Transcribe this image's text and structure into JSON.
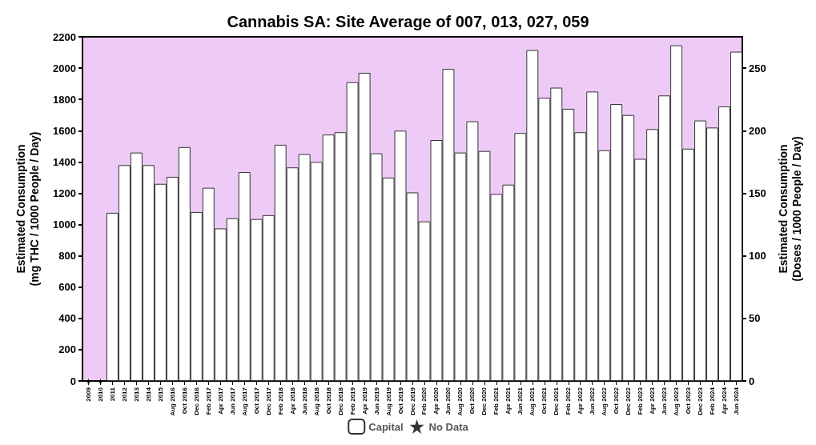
{
  "chart_data": {
    "type": "bar",
    "title": "Cannabis SA: Site Average of 007, 013, 027, 059",
    "ylabel": "Estimated Consumption\n(mg THC / 1000 People / Day)",
    "y2label": "Estimated Consumption\n(Doses / 1000 People / Day)",
    "categories": [
      "2009",
      "2010",
      "2011",
      "2012",
      "2013",
      "2014",
      "2015",
      "Aug 2016",
      "Oct 2016",
      "Dec 2016",
      "Feb 2017",
      "Apr 2017",
      "Jun 2017",
      "Aug 2017",
      "Oct 2017",
      "Dec 2017",
      "Feb 2018",
      "Apr 2018",
      "Jun 2018",
      "Aug 2018",
      "Oct 2018",
      "Dec 2018",
      "Feb 2019",
      "Apr 2019",
      "Jun 2019",
      "Aug 2019",
      "Oct 2019",
      "Dec 2019",
      "Feb 2020",
      "Apr 2020",
      "Jun 2020",
      "Aug 2020",
      "Oct 2020",
      "Dec 2020",
      "Feb 2021",
      "Apr 2021",
      "Jun 2021",
      "Aug 2021",
      "Oct 2021",
      "Dec 2021",
      "Feb 2022",
      "Apr 2022",
      "Jun 2022",
      "Aug 2022",
      "Oct 2022",
      "Dec 2022",
      "Feb 2023",
      "Apr 2023",
      "Jun 2023",
      "Aug 2023",
      "Oct 2023",
      "Dec 2023",
      "Feb 2024",
      "Apr 2024",
      "Jun 2024"
    ],
    "series": [
      {
        "name": "Capital",
        "color": "#ffffff",
        "values": [
          null,
          null,
          1075,
          1380,
          1460,
          1380,
          1260,
          1305,
          1495,
          1080,
          1235,
          975,
          1040,
          1335,
          1035,
          1060,
          1510,
          1365,
          1450,
          1400,
          1575,
          1590,
          1910,
          1970,
          1455,
          1300,
          1600,
          1205,
          1020,
          1540,
          1995,
          1460,
          1660,
          1470,
          1195,
          1255,
          1585,
          2115,
          1810,
          1875,
          1740,
          1590,
          1850,
          1475,
          1770,
          1700,
          1420,
          1610,
          1825,
          2145,
          1485,
          1665,
          1620,
          1755,
          2105
        ]
      },
      {
        "name": "No Data",
        "type": "scatter",
        "marker": "star",
        "color": "#000000",
        "values": [
          0,
          0,
          null,
          null,
          null,
          null,
          null,
          null,
          null,
          null,
          null,
          null,
          null,
          null,
          null,
          null,
          null,
          null,
          null,
          null,
          null,
          null,
          null,
          null,
          null,
          null,
          null,
          null,
          null,
          null,
          null,
          null,
          null,
          null,
          null,
          null,
          null,
          null,
          null,
          null,
          null,
          null,
          null,
          null,
          null,
          null,
          null,
          null,
          null,
          null,
          null,
          null,
          null,
          null,
          null
        ]
      }
    ],
    "ylim": [
      0,
      2200
    ],
    "yticks": [
      0,
      200,
      400,
      600,
      800,
      1000,
      1200,
      1400,
      1600,
      1800,
      2000,
      2200
    ],
    "y2lim": [
      0,
      275
    ],
    "y2ticks": [
      0,
      50,
      100,
      150,
      200,
      250
    ],
    "grid": false,
    "legend": "bottom"
  }
}
